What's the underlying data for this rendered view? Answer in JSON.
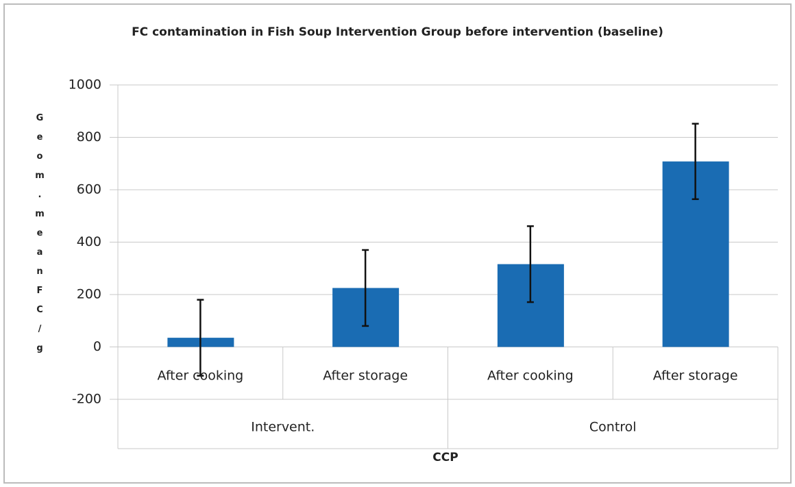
{
  "chart_data": {
    "type": "bar",
    "title": "FC contamination in Fish Soup  Intervention Group before intervention (baseline)",
    "x_label": "CCP",
    "y_label": "Geom.meanFC/g",
    "categories": [
      "After cooking",
      "After storage",
      "After cooking",
      "After storage"
    ],
    "groups": [
      "Intervent.",
      "Control"
    ],
    "values": [
      35,
      225,
      316,
      708
    ],
    "errors": [
      145,
      145,
      145,
      144
    ],
    "color": "#1a6cb3",
    "ylim": [
      -200,
      1000
    ],
    "yticks": [
      -200,
      0,
      200,
      400,
      600,
      800,
      1000
    ],
    "grid": true
  }
}
